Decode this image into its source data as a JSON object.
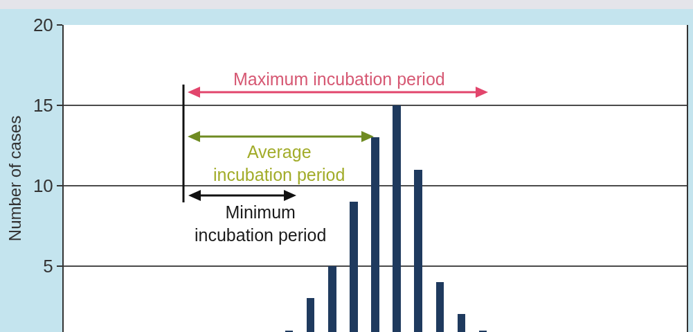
{
  "chart_data": {
    "type": "bar",
    "ylabel": "Number of cases",
    "categories": [
      null,
      null,
      null,
      null,
      null,
      null,
      null,
      null,
      null,
      null,
      null,
      null,
      null,
      null,
      null,
      null,
      null,
      null,
      null,
      null,
      null,
      null,
      null,
      null,
      null,
      null,
      null,
      null,
      null
    ],
    "values": [
      null,
      null,
      null,
      null,
      null,
      null,
      null,
      null,
      null,
      null,
      1,
      3,
      5,
      9,
      13,
      15,
      11,
      4,
      2,
      1,
      null,
      null,
      null,
      null,
      null,
      null,
      null,
      null,
      null
    ],
    "color": "#1f3a5e",
    "ylim": [
      0.9,
      20
    ],
    "yticks": [
      5,
      10,
      15,
      20
    ],
    "grid": "y",
    "tick_labels": "y",
    "annotations": [
      "Maximum incubation period",
      "Average\nincubation period",
      "Minimum\nincubation period"
    ]
  }
}
